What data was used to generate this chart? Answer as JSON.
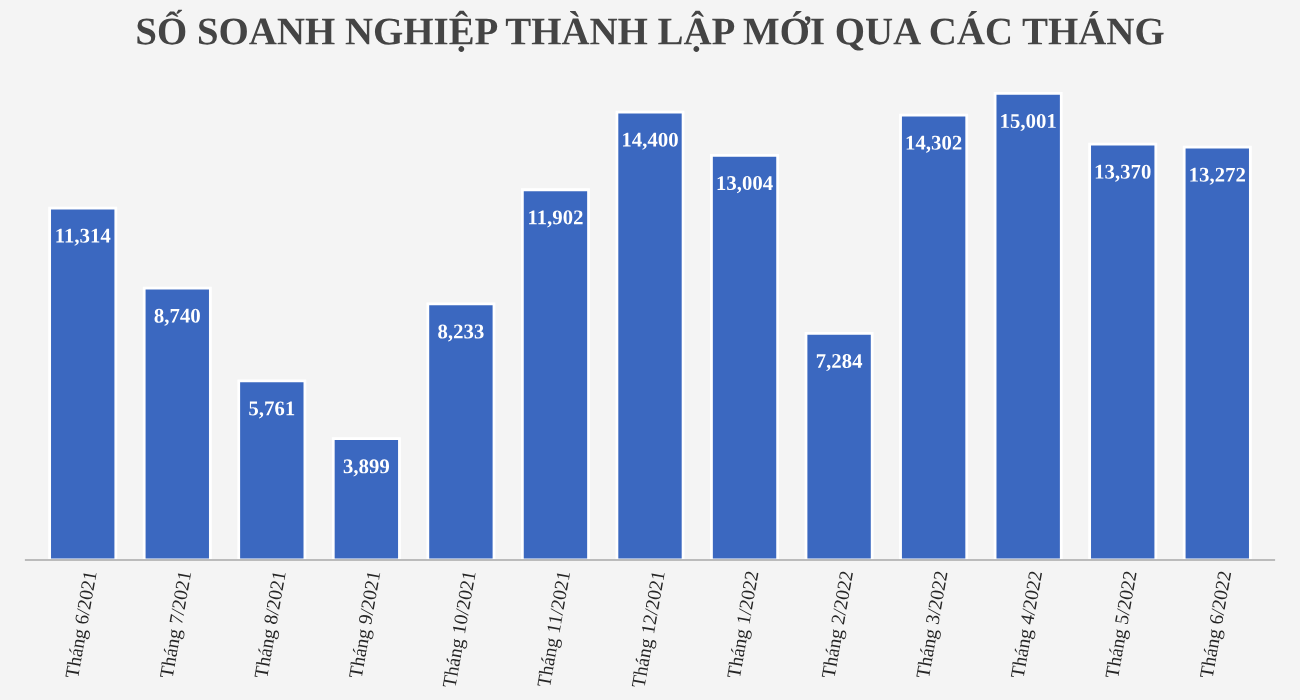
{
  "chart_data": {
    "type": "bar",
    "title": "SỐ SOANH NGHIỆP THÀNH LẬP MỚI QUA CÁC THÁNG",
    "categories": [
      "Tháng 6/2021",
      "Tháng 7/2021",
      "Tháng 8/2021",
      "Tháng 9/2021",
      "Tháng 10/2021",
      "Tháng 11/2021",
      "Tháng 12/2021",
      "Tháng 1/2022",
      "Tháng 2/2022",
      "Tháng 3/2022",
      "Tháng 4/2022",
      "Tháng 5/2022",
      "Tháng 6/2022"
    ],
    "values": [
      11314,
      8740,
      5761,
      3899,
      8233,
      11902,
      14400,
      13004,
      7284,
      14302,
      15001,
      13370,
      13272
    ],
    "value_labels": [
      "11,314",
      "8,740",
      "5,761",
      "3,899",
      "8,233",
      "11,902",
      "14,400",
      "13,004",
      "7,284",
      "14,302",
      "15,001",
      "13,370",
      "13,272"
    ],
    "color": "#3b68c0",
    "grid": false,
    "tick_labels": "x",
    "legend": false
  }
}
